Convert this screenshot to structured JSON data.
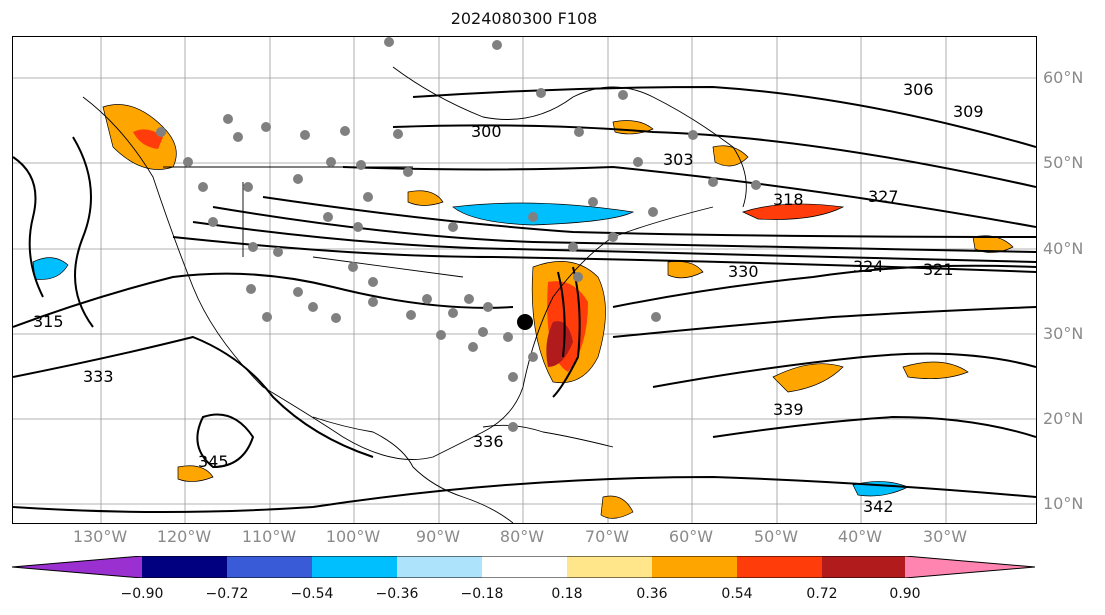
{
  "title": "2024080300 F108",
  "lat_labels": [
    "60°N",
    "50°N",
    "40°N",
    "30°N",
    "20°N",
    "10°N"
  ],
  "lon_labels": [
    "130°W",
    "120°W",
    "110°W",
    "100°W",
    "90°W",
    "80°W",
    "70°W",
    "60°W",
    "50°W",
    "40°W",
    "30°W"
  ],
  "contour_labels": [
    "300",
    "303",
    "306",
    "309",
    "315",
    "318",
    "321",
    "324",
    "327",
    "330",
    "333",
    "336",
    "339",
    "342",
    "345"
  ],
  "colorbar": {
    "ticks": [
      "−0.90",
      "−0.72",
      "−0.54",
      "−0.36",
      "−0.18",
      "0.18",
      "0.36",
      "0.54",
      "0.72",
      "0.90"
    ],
    "colors": [
      "#9b30d0",
      "#000080",
      "#3a5bd8",
      "#00bfff",
      "#aee4fb",
      "#ffffff",
      "#ffe68a",
      "#ffa500",
      "#ff3c0a",
      "#b11b1b",
      "#ff85b0"
    ]
  }
}
